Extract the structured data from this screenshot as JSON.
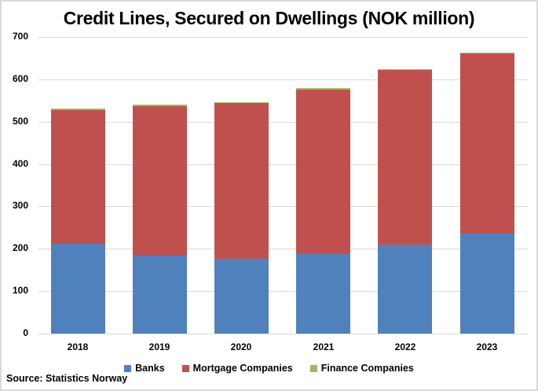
{
  "chart_data": {
    "type": "bar",
    "stacked": true,
    "title": "Credit Lines, Secured on Dwellings (NOK million)",
    "xlabel": "",
    "ylabel": "",
    "categories": [
      "2018",
      "2019",
      "2020",
      "2021",
      "2022",
      "2023"
    ],
    "series": [
      {
        "name": "Banks",
        "color": "#4f81bd",
        "values": [
          212,
          184,
          176,
          188,
          210,
          236
        ]
      },
      {
        "name": "Mortgage Companies",
        "color": "#c0504d",
        "values": [
          317,
          354,
          368,
          389,
          412,
          425
        ]
      },
      {
        "name": "Finance Companies",
        "color": "#9bbb59",
        "values": [
          2,
          2,
          2,
          2,
          2,
          2
        ]
      }
    ],
    "ylim": [
      0,
      700
    ],
    "yticks": [
      "0",
      "100",
      "200",
      "300",
      "400",
      "500",
      "600",
      "700"
    ],
    "grid": true,
    "legend_position": "bottom",
    "source": "Source: Statistics Norway"
  }
}
